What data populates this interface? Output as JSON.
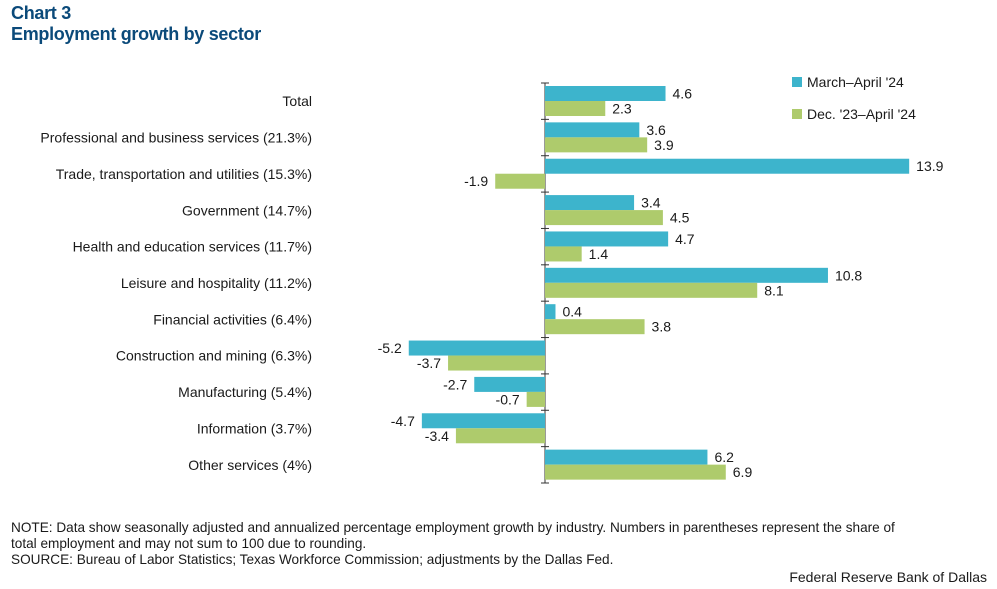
{
  "header": {
    "chart_number": "Chart 3",
    "title": "Employment growth by sector"
  },
  "notes": {
    "note_line1": "NOTE: Data show seasonally adjusted and annualized percentage employment growth by industry. Numbers in parentheses represent the share of",
    "note_line2": "total employment and may not sum to 100 due to rounding.",
    "source": "SOURCE: Bureau of Labor Statistics; Texas Workforce Commission; adjustments by the Dallas Fed.",
    "credit": "Federal Reserve Bank of Dallas"
  },
  "colors": {
    "series1": "#3db4cc",
    "series2": "#aecb6c",
    "title": "#0b4a7a",
    "axis": "#333333"
  },
  "chart_data": {
    "type": "bar",
    "orientation": "horizontal",
    "title": "Employment growth by sector",
    "categories": [
      "Total",
      "Professional and business services (21.3%)",
      "Trade, transportation and utilities (15.3%)",
      "Government (14.7%)",
      "Health and education services (11.7%)",
      "Leisure and hospitality  (11.2%)",
      "Financial activities (6.4%)",
      "Construction and mining (6.3%)",
      "Manufacturing (5.4%)",
      "Information (3.7%)",
      "Other services (4%)"
    ],
    "series": [
      {
        "name": "March–April '24",
        "values": [
          4.6,
          3.6,
          13.9,
          3.4,
          4.7,
          10.8,
          0.4,
          -5.2,
          -2.7,
          -4.7,
          6.2
        ]
      },
      {
        "name": "Dec. '23–April '24",
        "values": [
          2.3,
          3.9,
          -1.9,
          4.5,
          1.4,
          8.1,
          3.8,
          -3.7,
          -0.7,
          -3.4,
          6.9
        ]
      }
    ],
    "xlim": [
      -6,
      16
    ],
    "legend_position": "top-right",
    "grid": false
  }
}
